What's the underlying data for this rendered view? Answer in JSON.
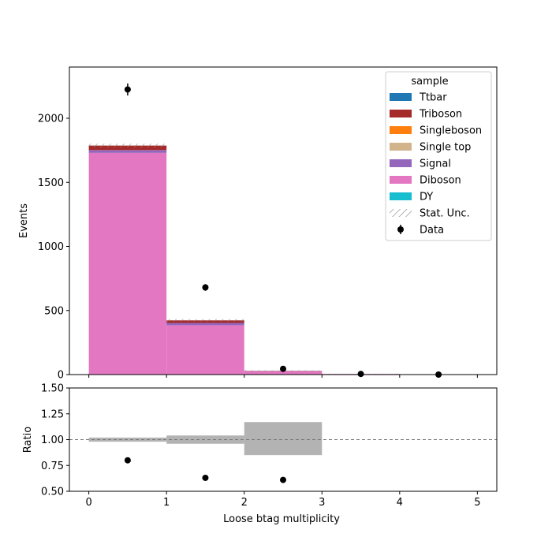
{
  "chart_data": {
    "type": "bar",
    "stacked": true,
    "xlabel": "Loose btag multiplicity",
    "bin_edges": [
      0,
      1,
      2,
      3,
      4,
      5
    ],
    "main": {
      "ylabel": "Events",
      "xlim": [
        -0.25,
        5.25
      ],
      "ylim": [
        0,
        2400
      ],
      "yticks": [
        0,
        500,
        1000,
        1500,
        2000
      ],
      "xticks": [
        0,
        1,
        2,
        3,
        4,
        5
      ]
    },
    "ratio": {
      "ylabel": "Ratio",
      "ylim": [
        0.5,
        1.5
      ],
      "yticks": [
        "0.50",
        "0.75",
        "1.00",
        "1.25",
        "1.50"
      ],
      "xticks": [
        "0",
        "1",
        "2",
        "3",
        "4",
        "5"
      ],
      "reference_line": 1.0
    },
    "legend": {
      "title": "sample",
      "placement": "top-right",
      "entries": [
        "Ttbar",
        "Triboson",
        "Singleboson",
        "Single top",
        "Signal",
        "Diboson",
        "DY",
        "Stat. Unc.",
        "Data"
      ]
    },
    "series": [
      {
        "name": "DY",
        "color": "#17becf",
        "values": [
          0,
          0,
          0,
          0,
          0
        ]
      },
      {
        "name": "Diboson",
        "color": "#e377c2",
        "values": [
          1730,
          385,
          25,
          5,
          0
        ]
      },
      {
        "name": "Signal",
        "color": "#9467bd",
        "values": [
          22,
          18,
          2,
          0,
          0
        ]
      },
      {
        "name": "Single top",
        "color": "#d2b48c",
        "values": [
          0,
          0,
          0,
          0,
          0
        ]
      },
      {
        "name": "Singleboson",
        "color": "#ff7f0e",
        "values": [
          0,
          0,
          0,
          0,
          0
        ]
      },
      {
        "name": "Triboson",
        "color": "#a52a2a",
        "values": [
          35,
          20,
          2,
          0,
          0
        ]
      },
      {
        "name": "Ttbar",
        "color": "#1f77b4",
        "values": [
          0,
          0,
          0,
          0,
          0
        ]
      }
    ],
    "stat_unc": [
      15,
      10,
      4,
      1,
      0
    ],
    "data": {
      "name": "Data",
      "x": [
        0.5,
        1.5,
        2.5,
        3.5,
        4.5
      ],
      "y": [
        2225,
        680,
        45,
        5,
        0
      ],
      "yerr": [
        47,
        26,
        7,
        2,
        0
      ]
    },
    "ratio_data": {
      "x": [
        0.5,
        1.5,
        2.5
      ],
      "y": [
        0.8,
        0.63,
        0.61
      ]
    },
    "ratio_unc": {
      "bins": [
        [
          0,
          1
        ],
        [
          1,
          2
        ],
        [
          2,
          3
        ]
      ],
      "low": [
        0.98,
        0.96,
        0.85
      ],
      "high": [
        1.02,
        1.04,
        1.17
      ]
    }
  }
}
